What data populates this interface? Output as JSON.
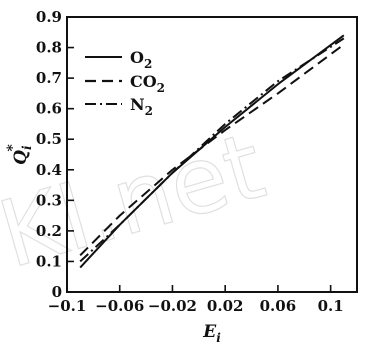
{
  "chart_data": {
    "type": "line",
    "title": "",
    "xlabel": "E_i",
    "ylabel": "Q_i*",
    "xlim": [
      -0.1,
      0.12
    ],
    "ylim": [
      0,
      0.9
    ],
    "x_ticks": [
      -0.1,
      -0.06,
      -0.02,
      0.02,
      0.06,
      0.1
    ],
    "x_tick_labels": [
      "−0.1",
      "−0.06",
      "−0.02",
      "0.02",
      "0.06",
      "0.1"
    ],
    "y_ticks": [
      0,
      0.1,
      0.2,
      0.3,
      0.4,
      0.5,
      0.6,
      0.7,
      0.8,
      0.9
    ],
    "y_tick_labels": [
      "0",
      "0.1",
      "0.2",
      "0.3",
      "0.4",
      "0.5",
      "0.6",
      "0.7",
      "0.8",
      "0.9"
    ],
    "grid": false,
    "legend_position": "top-left",
    "series": [
      {
        "name": "O2",
        "style": "solid",
        "color": "#111111",
        "x": [
          -0.09,
          -0.06,
          -0.02,
          0.02,
          0.06,
          0.11
        ],
        "y": [
          0.08,
          0.22,
          0.39,
          0.54,
          0.68,
          0.84
        ]
      },
      {
        "name": "CO2",
        "style": "dashed",
        "color": "#111111",
        "x": [
          -0.09,
          -0.06,
          -0.02,
          0.02,
          0.06,
          0.11
        ],
        "y": [
          0.12,
          0.25,
          0.4,
          0.53,
          0.65,
          0.81
        ]
      },
      {
        "name": "N2",
        "style": "dashdot",
        "color": "#111111",
        "x": [
          -0.09,
          -0.06,
          -0.02,
          0.02,
          0.06,
          0.11
        ],
        "y": [
          0.1,
          0.22,
          0.39,
          0.55,
          0.69,
          0.83
        ]
      }
    ]
  },
  "legend": {
    "o2": {
      "base": "O",
      "sub": "2"
    },
    "co2": {
      "base": "CO",
      "sub": "2"
    },
    "n2": {
      "base": "N",
      "sub": "2"
    }
  },
  "watermark": "KI.net"
}
